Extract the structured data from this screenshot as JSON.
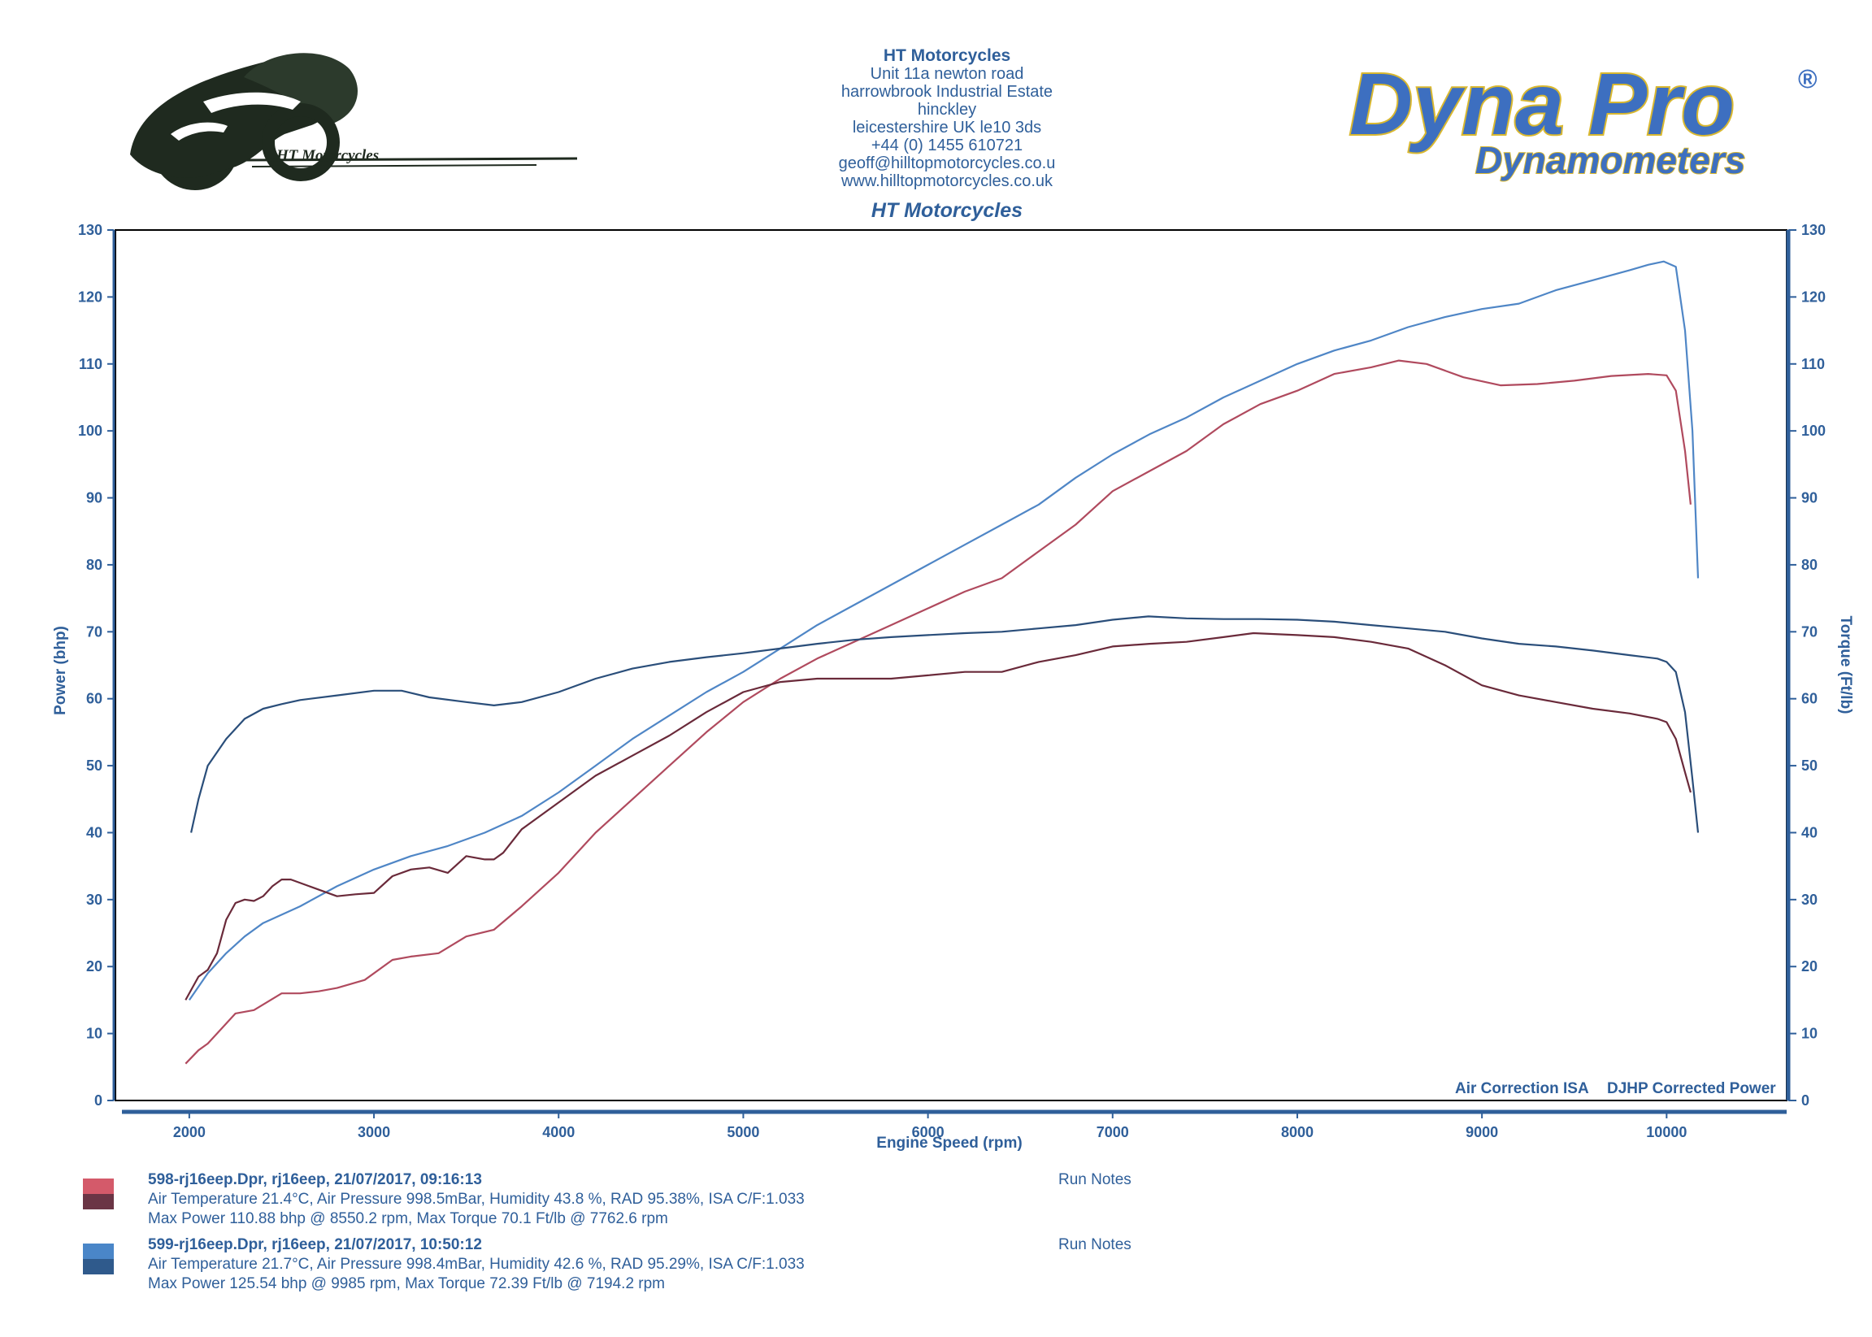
{
  "header": {
    "company": "HT Motorcycles",
    "address_lines": [
      "Unit 11a newton road",
      "harrowbrook  Industrial Estate",
      "hinckley",
      "leicestershire UK le10 3ds",
      "+44 (0) 1455 610721",
      "geoff@hilltopmotorcycles.co.u",
      "www.hilltopmotorcycles.co.uk"
    ],
    "subtitle": "HT Motorcycles"
  },
  "logos": {
    "left_text": "HT Motorcycles",
    "right_brand": "Dyna Pro",
    "right_registered": "®",
    "right_sub": "Dynamometers"
  },
  "colors": {
    "axis": "#2f5f9a",
    "run1_power": "#b04a5e",
    "run1_torque": "#6a2a3a",
    "run2_power": "#4f86c6",
    "run2_torque": "#2a4e7a",
    "grid": "#000000"
  },
  "chart_data": {
    "type": "line",
    "xlabel": "Engine Speed (rpm)",
    "ylabel_left": "Power (bhp)",
    "ylabel_right": "Torque (Ft/lb)",
    "xlim": [
      1600,
      10650
    ],
    "ylim": [
      0,
      130
    ],
    "x_ticks": [
      2000,
      3000,
      4000,
      5000,
      6000,
      7000,
      8000,
      9000,
      10000
    ],
    "y_ticks": [
      0,
      10,
      20,
      30,
      40,
      50,
      60,
      70,
      80,
      90,
      100,
      110,
      120,
      130
    ],
    "notes_left": "Air Correction ISA",
    "notes_right": "DJHP Corrected Power",
    "series": [
      {
        "id": "run1_power",
        "run": 1,
        "kind": "power",
        "points": [
          [
            1980,
            5.5
          ],
          [
            2050,
            7.5
          ],
          [
            2100,
            8.5
          ],
          [
            2250,
            13
          ],
          [
            2350,
            13.5
          ],
          [
            2500,
            16
          ],
          [
            2600,
            16
          ],
          [
            2700,
            16.3
          ],
          [
            2800,
            16.8
          ],
          [
            2950,
            18
          ],
          [
            3100,
            21
          ],
          [
            3200,
            21.5
          ],
          [
            3350,
            22
          ],
          [
            3500,
            24.5
          ],
          [
            3650,
            25.5
          ],
          [
            3800,
            29
          ],
          [
            4000,
            34
          ],
          [
            4200,
            40
          ],
          [
            4400,
            45
          ],
          [
            4600,
            50
          ],
          [
            4800,
            55
          ],
          [
            5000,
            59.5
          ],
          [
            5200,
            63
          ],
          [
            5400,
            66
          ],
          [
            5600,
            68.5
          ],
          [
            5800,
            71
          ],
          [
            6000,
            73.5
          ],
          [
            6200,
            76
          ],
          [
            6400,
            78
          ],
          [
            6600,
            82
          ],
          [
            6800,
            86
          ],
          [
            7000,
            91
          ],
          [
            7200,
            94
          ],
          [
            7400,
            97
          ],
          [
            7600,
            101
          ],
          [
            7800,
            104
          ],
          [
            8000,
            106
          ],
          [
            8200,
            108.5
          ],
          [
            8400,
            109.5
          ],
          [
            8550,
            110.5
          ],
          [
            8700,
            110
          ],
          [
            8900,
            108
          ],
          [
            9100,
            106.8
          ],
          [
            9300,
            107
          ],
          [
            9500,
            107.5
          ],
          [
            9700,
            108.2
          ],
          [
            9900,
            108.5
          ],
          [
            10000,
            108.3
          ],
          [
            10050,
            106
          ],
          [
            10100,
            97
          ],
          [
            10130,
            89
          ]
        ]
      },
      {
        "id": "run2_power",
        "run": 2,
        "kind": "power",
        "points": [
          [
            2000,
            15
          ],
          [
            2100,
            19
          ],
          [
            2200,
            22
          ],
          [
            2300,
            24.5
          ],
          [
            2400,
            26.5
          ],
          [
            2600,
            29
          ],
          [
            2800,
            32
          ],
          [
            3000,
            34.5
          ],
          [
            3200,
            36.5
          ],
          [
            3400,
            38
          ],
          [
            3600,
            40
          ],
          [
            3800,
            42.5
          ],
          [
            4000,
            46
          ],
          [
            4200,
            50
          ],
          [
            4400,
            54
          ],
          [
            4600,
            57.5
          ],
          [
            4800,
            61
          ],
          [
            5000,
            64
          ],
          [
            5200,
            67.5
          ],
          [
            5400,
            71
          ],
          [
            5600,
            74
          ],
          [
            5800,
            77
          ],
          [
            6000,
            80
          ],
          [
            6200,
            83
          ],
          [
            6400,
            86
          ],
          [
            6600,
            89
          ],
          [
            6800,
            93
          ],
          [
            7000,
            96.5
          ],
          [
            7200,
            99.5
          ],
          [
            7400,
            102
          ],
          [
            7600,
            105
          ],
          [
            7800,
            107.5
          ],
          [
            8000,
            110
          ],
          [
            8200,
            112
          ],
          [
            8400,
            113.5
          ],
          [
            8600,
            115.5
          ],
          [
            8800,
            117
          ],
          [
            9000,
            118.2
          ],
          [
            9200,
            119
          ],
          [
            9400,
            121
          ],
          [
            9600,
            122.5
          ],
          [
            9800,
            124
          ],
          [
            9900,
            124.8
          ],
          [
            9985,
            125.3
          ],
          [
            10050,
            124.5
          ],
          [
            10100,
            115
          ],
          [
            10140,
            100
          ],
          [
            10170,
            78
          ]
        ]
      },
      {
        "id": "run1_torque",
        "run": 1,
        "kind": "torque",
        "points": [
          [
            1980,
            15
          ],
          [
            2050,
            18.5
          ],
          [
            2100,
            19.5
          ],
          [
            2150,
            22
          ],
          [
            2200,
            27
          ],
          [
            2250,
            29.5
          ],
          [
            2300,
            30
          ],
          [
            2350,
            29.8
          ],
          [
            2400,
            30.5
          ],
          [
            2450,
            32
          ],
          [
            2500,
            33
          ],
          [
            2550,
            33
          ],
          [
            2650,
            32
          ],
          [
            2800,
            30.5
          ],
          [
            2900,
            30.8
          ],
          [
            3000,
            31
          ],
          [
            3100,
            33.5
          ],
          [
            3200,
            34.5
          ],
          [
            3300,
            34.8
          ],
          [
            3400,
            34
          ],
          [
            3500,
            36.5
          ],
          [
            3600,
            36
          ],
          [
            3650,
            36
          ],
          [
            3700,
            37
          ],
          [
            3800,
            40.5
          ],
          [
            4000,
            44.5
          ],
          [
            4200,
            48.5
          ],
          [
            4400,
            51.5
          ],
          [
            4600,
            54.5
          ],
          [
            4800,
            58
          ],
          [
            5000,
            61
          ],
          [
            5200,
            62.5
          ],
          [
            5400,
            63
          ],
          [
            5600,
            63
          ],
          [
            5800,
            63
          ],
          [
            6000,
            63.5
          ],
          [
            6200,
            64
          ],
          [
            6400,
            64
          ],
          [
            6600,
            65.5
          ],
          [
            6800,
            66.5
          ],
          [
            7000,
            67.8
          ],
          [
            7200,
            68.2
          ],
          [
            7400,
            68.5
          ],
          [
            7600,
            69.2
          ],
          [
            7763,
            69.8
          ],
          [
            8000,
            69.5
          ],
          [
            8200,
            69.2
          ],
          [
            8400,
            68.5
          ],
          [
            8600,
            67.5
          ],
          [
            8800,
            65
          ],
          [
            9000,
            62
          ],
          [
            9200,
            60.5
          ],
          [
            9400,
            59.5
          ],
          [
            9600,
            58.5
          ],
          [
            9800,
            57.8
          ],
          [
            9950,
            57
          ],
          [
            10000,
            56.5
          ],
          [
            10050,
            54
          ],
          [
            10100,
            49
          ],
          [
            10130,
            46
          ]
        ]
      },
      {
        "id": "run2_torque",
        "run": 2,
        "kind": "torque",
        "points": [
          [
            2010,
            40
          ],
          [
            2050,
            45
          ],
          [
            2100,
            50
          ],
          [
            2200,
            54
          ],
          [
            2300,
            57
          ],
          [
            2400,
            58.5
          ],
          [
            2500,
            59.2
          ],
          [
            2600,
            59.8
          ],
          [
            2800,
            60.5
          ],
          [
            3000,
            61.2
          ],
          [
            3150,
            61.2
          ],
          [
            3300,
            60.2
          ],
          [
            3500,
            59.5
          ],
          [
            3650,
            59
          ],
          [
            3800,
            59.5
          ],
          [
            4000,
            61
          ],
          [
            4200,
            63
          ],
          [
            4400,
            64.5
          ],
          [
            4600,
            65.5
          ],
          [
            4800,
            66.2
          ],
          [
            5000,
            66.8
          ],
          [
            5200,
            67.5
          ],
          [
            5400,
            68.2
          ],
          [
            5600,
            68.8
          ],
          [
            5800,
            69.2
          ],
          [
            6000,
            69.5
          ],
          [
            6200,
            69.8
          ],
          [
            6400,
            70
          ],
          [
            6600,
            70.5
          ],
          [
            6800,
            71
          ],
          [
            7000,
            71.8
          ],
          [
            7194,
            72.3
          ],
          [
            7400,
            72
          ],
          [
            7600,
            71.9
          ],
          [
            7800,
            71.9
          ],
          [
            8000,
            71.8
          ],
          [
            8200,
            71.5
          ],
          [
            8400,
            71
          ],
          [
            8600,
            70.5
          ],
          [
            8800,
            70
          ],
          [
            9000,
            69
          ],
          [
            9200,
            68.2
          ],
          [
            9400,
            67.8
          ],
          [
            9600,
            67.2
          ],
          [
            9800,
            66.5
          ],
          [
            9950,
            66
          ],
          [
            10000,
            65.5
          ],
          [
            10050,
            64
          ],
          [
            10100,
            58
          ],
          [
            10140,
            48
          ],
          [
            10170,
            40
          ]
        ]
      }
    ]
  },
  "legend": [
    {
      "file_line": "598-rj16eep.Dpr,   rj16eep,   21/07/2017,   09:16:13",
      "conditions": "Air Temperature 21.4°C, Air Pressure 998.5mBar, Humidity 43.8 %, RAD 95.38%,   ISA  C/F:1.033",
      "max_line": "Max Power 110.88 bhp @ 8550.2 rpm, Max Torque 70.1 Ft/lb @ 7762.6 rpm",
      "notes": "Run Notes",
      "swatch_top": "#d45a6a",
      "swatch_bottom": "#6b3545"
    },
    {
      "file_line": "599-rj16eep.Dpr,   rj16eep,   21/07/2017,   10:50:12",
      "conditions": "Air Temperature 21.7°C, Air Pressure 998.4mBar, Humidity 42.6 %, RAD 95.29%,   ISA  C/F:1.033",
      "max_line": "Max Power 125.54 bhp @ 9985 rpm, Max Torque 72.39 Ft/lb @ 7194.2 rpm",
      "notes": "Run Notes",
      "swatch_top": "#4a86c8",
      "swatch_bottom": "#2f5a8c"
    }
  ]
}
